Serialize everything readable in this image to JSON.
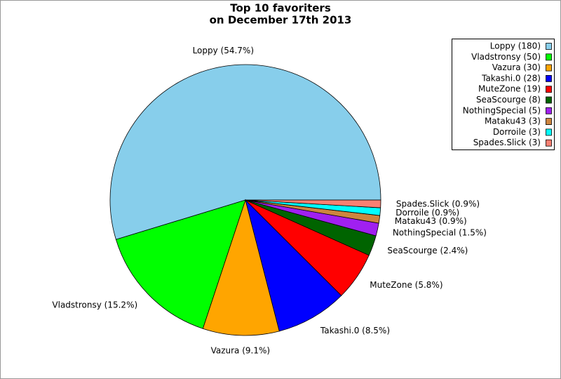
{
  "chart_data": {
    "type": "pie",
    "title": [
      "Top 10 favoriters",
      "on December 17th 2013"
    ],
    "categories": [
      "Loppy (180)",
      "Vladstronsy (50)",
      "Vazura (30)",
      "Takashi.0 (28)",
      "MuteZone (19)",
      "SeaScourge (8)",
      "NothingSpecial (5)",
      "Mataku43 (3)",
      "Dorroile (3)",
      "Spades.Slick (3)"
    ],
    "values": [
      180,
      50,
      30,
      28,
      19,
      8,
      5,
      3,
      3,
      3
    ],
    "slice_labels": [
      "Loppy (54.7%)",
      "Vladstronsy (15.2%)",
      "Vazura (9.1%)",
      "Takashi.0 (8.5%)",
      "MuteZone (5.8%)",
      "SeaScourge (2.4%)",
      "NothingSpecial (1.5%)",
      "Mataku43 (0.9%)",
      "Dorroile (0.9%)",
      "Spades.Slick (0.9%)"
    ],
    "colors": [
      "#87ceeb",
      "#00ff00",
      "#ffa500",
      "#0000ff",
      "#ff0000",
      "#006400",
      "#a020f0",
      "#cd853f",
      "#00ffff",
      "#fa8072"
    ],
    "legend": "upper right"
  }
}
